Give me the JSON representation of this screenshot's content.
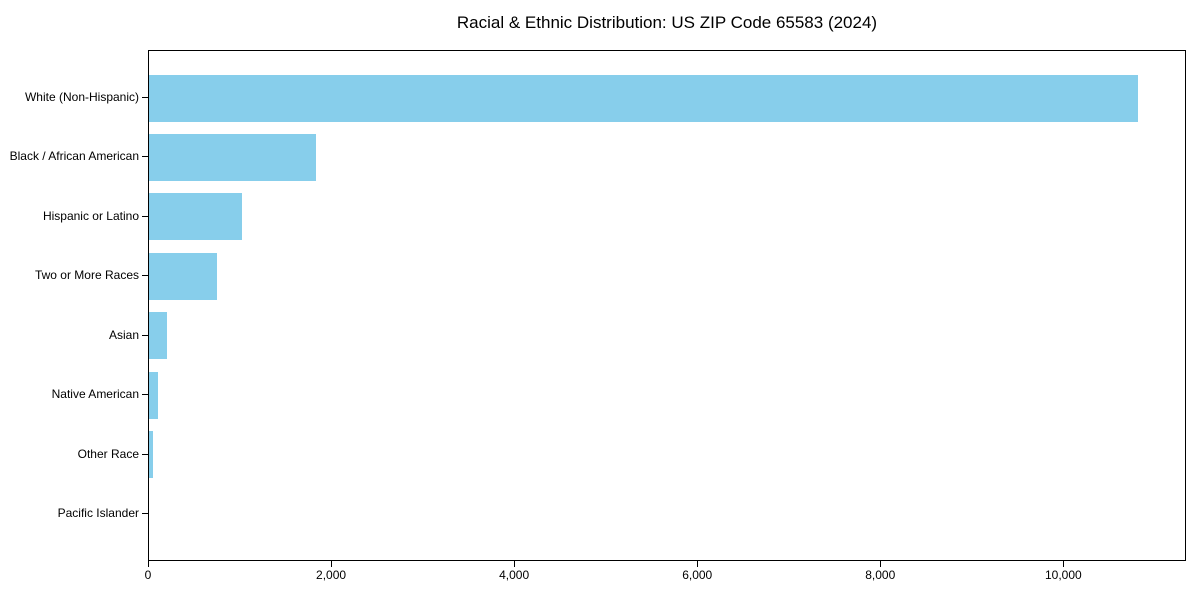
{
  "chart_data": {
    "type": "bar",
    "orientation": "horizontal",
    "title": "Racial & Ethnic Distribution: US ZIP Code 65583 (2024)",
    "xlabel": "",
    "ylabel": "",
    "categories": [
      "White (Non-Hispanic)",
      "Black / African American",
      "Hispanic or Latino",
      "Two or More Races",
      "Asian",
      "Native American",
      "Other Race",
      "Pacific Islander"
    ],
    "values": [
      10800,
      1820,
      1020,
      740,
      200,
      100,
      45,
      0
    ],
    "xlim": [
      0,
      11340
    ],
    "xticks": [
      0,
      2000,
      4000,
      6000,
      8000,
      10000
    ],
    "xtick_labels": [
      "0",
      "2,000",
      "4,000",
      "6,000",
      "8,000",
      "10,000"
    ],
    "bar_color": "#87CEEB",
    "frame_color": "#000000",
    "text_color": "#000000",
    "background_color": "#ffffff",
    "grid": false,
    "legend": null
  }
}
